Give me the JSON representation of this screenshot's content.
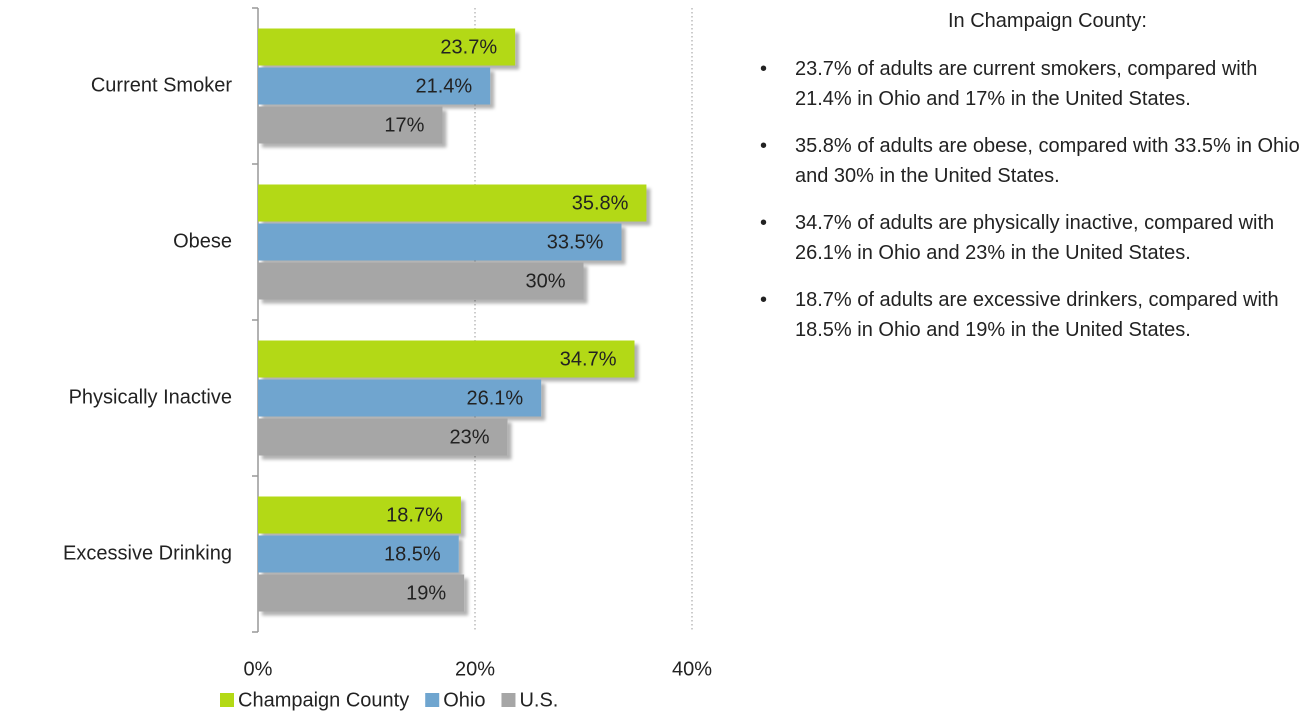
{
  "chart_data": {
    "type": "bar",
    "orientation": "horizontal",
    "categories": [
      "Current Smoker",
      "Obese",
      "Physically Inactive",
      "Excessive Drinking"
    ],
    "series": [
      {
        "name": "Champaign County",
        "color": "#b3d915",
        "values": [
          23.7,
          35.8,
          34.7,
          18.7
        ],
        "value_labels": [
          "23.7%",
          "35.8%",
          "34.7%",
          "18.7%"
        ]
      },
      {
        "name": "Ohio",
        "color": "#6fa5cf",
        "values": [
          21.4,
          33.5,
          26.1,
          18.5
        ],
        "value_labels": [
          "21.4%",
          "33.5%",
          "26.1%",
          "18.5%"
        ]
      },
      {
        "name": "U.S.",
        "color": "#a6a6a6",
        "values": [
          17,
          30,
          23,
          19
        ],
        "value_labels": [
          "17%",
          "30%",
          "23%",
          "19%"
        ]
      }
    ],
    "xlim": [
      0,
      40
    ],
    "xticks": [
      {
        "value": 0,
        "label": "0%"
      },
      {
        "value": 20,
        "label": "20%"
      },
      {
        "value": 40,
        "label": "40%"
      }
    ],
    "grid": true,
    "legend": "bottom"
  },
  "side_text": {
    "heading": "In Champaign County:",
    "bullets": [
      "23.7% of adults are current smokers, compared with 21.4% in Ohio and 17% in the United States.",
      "35.8% of adults are obese, compared with 33.5% in Ohio and 30% in the United States.",
      "34.7% of adults are physically inactive, compared with 26.1% in Ohio and 23% in the United States.",
      "18.7% of adults are excessive drinkers, compared with 18.5% in Ohio and 19% in the United States."
    ]
  }
}
